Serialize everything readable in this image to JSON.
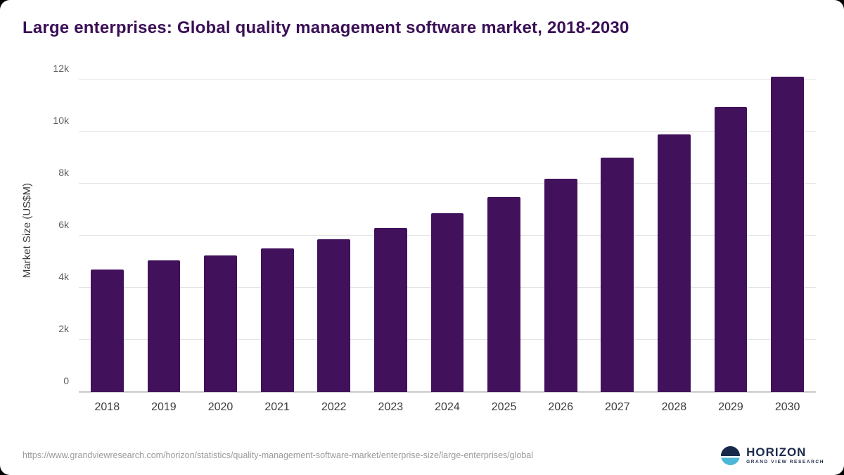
{
  "header": {
    "title": "Large enterprises: Global quality management software market, 2018-2030"
  },
  "chart_data": {
    "type": "bar",
    "title": "Large enterprises: Global quality management software market, 2018-2030",
    "categories": [
      "2018",
      "2019",
      "2020",
      "2021",
      "2022",
      "2023",
      "2024",
      "2025",
      "2026",
      "2027",
      "2028",
      "2029",
      "2030"
    ],
    "values": [
      4700,
      5050,
      5250,
      5500,
      5850,
      6300,
      6850,
      7480,
      8180,
      9000,
      9900,
      10950,
      12100
    ],
    "xlabel": "",
    "ylabel": "Market Size (US$M)",
    "ylim": [
      0,
      12400
    ],
    "yticks": [
      0,
      2000,
      4000,
      6000,
      8000,
      10000,
      12000
    ],
    "ytick_labels": [
      "0",
      "2k",
      "4k",
      "6k",
      "8k",
      "10k",
      "12k"
    ],
    "grid": true,
    "legend": "none",
    "bar_color": "#42115c"
  },
  "footer": {
    "source_url": "https://www.grandviewresearch.com/horizon/statistics/quality-management-software-market/enterprise-size/large-enterprises/global"
  },
  "logo": {
    "name": "HORIZON",
    "subtitle": "GRAND VIEW RESEARCH",
    "icon": "horizon-circle-icon"
  },
  "colors": {
    "title": "#3b0f56",
    "bar": "#42115c",
    "gridline": "#e4e4e4",
    "axis_text": "#5f5f5f",
    "source_text": "#9b9b9b",
    "logo_navy": "#1c2b4a",
    "logo_blue": "#4cb6d6"
  }
}
